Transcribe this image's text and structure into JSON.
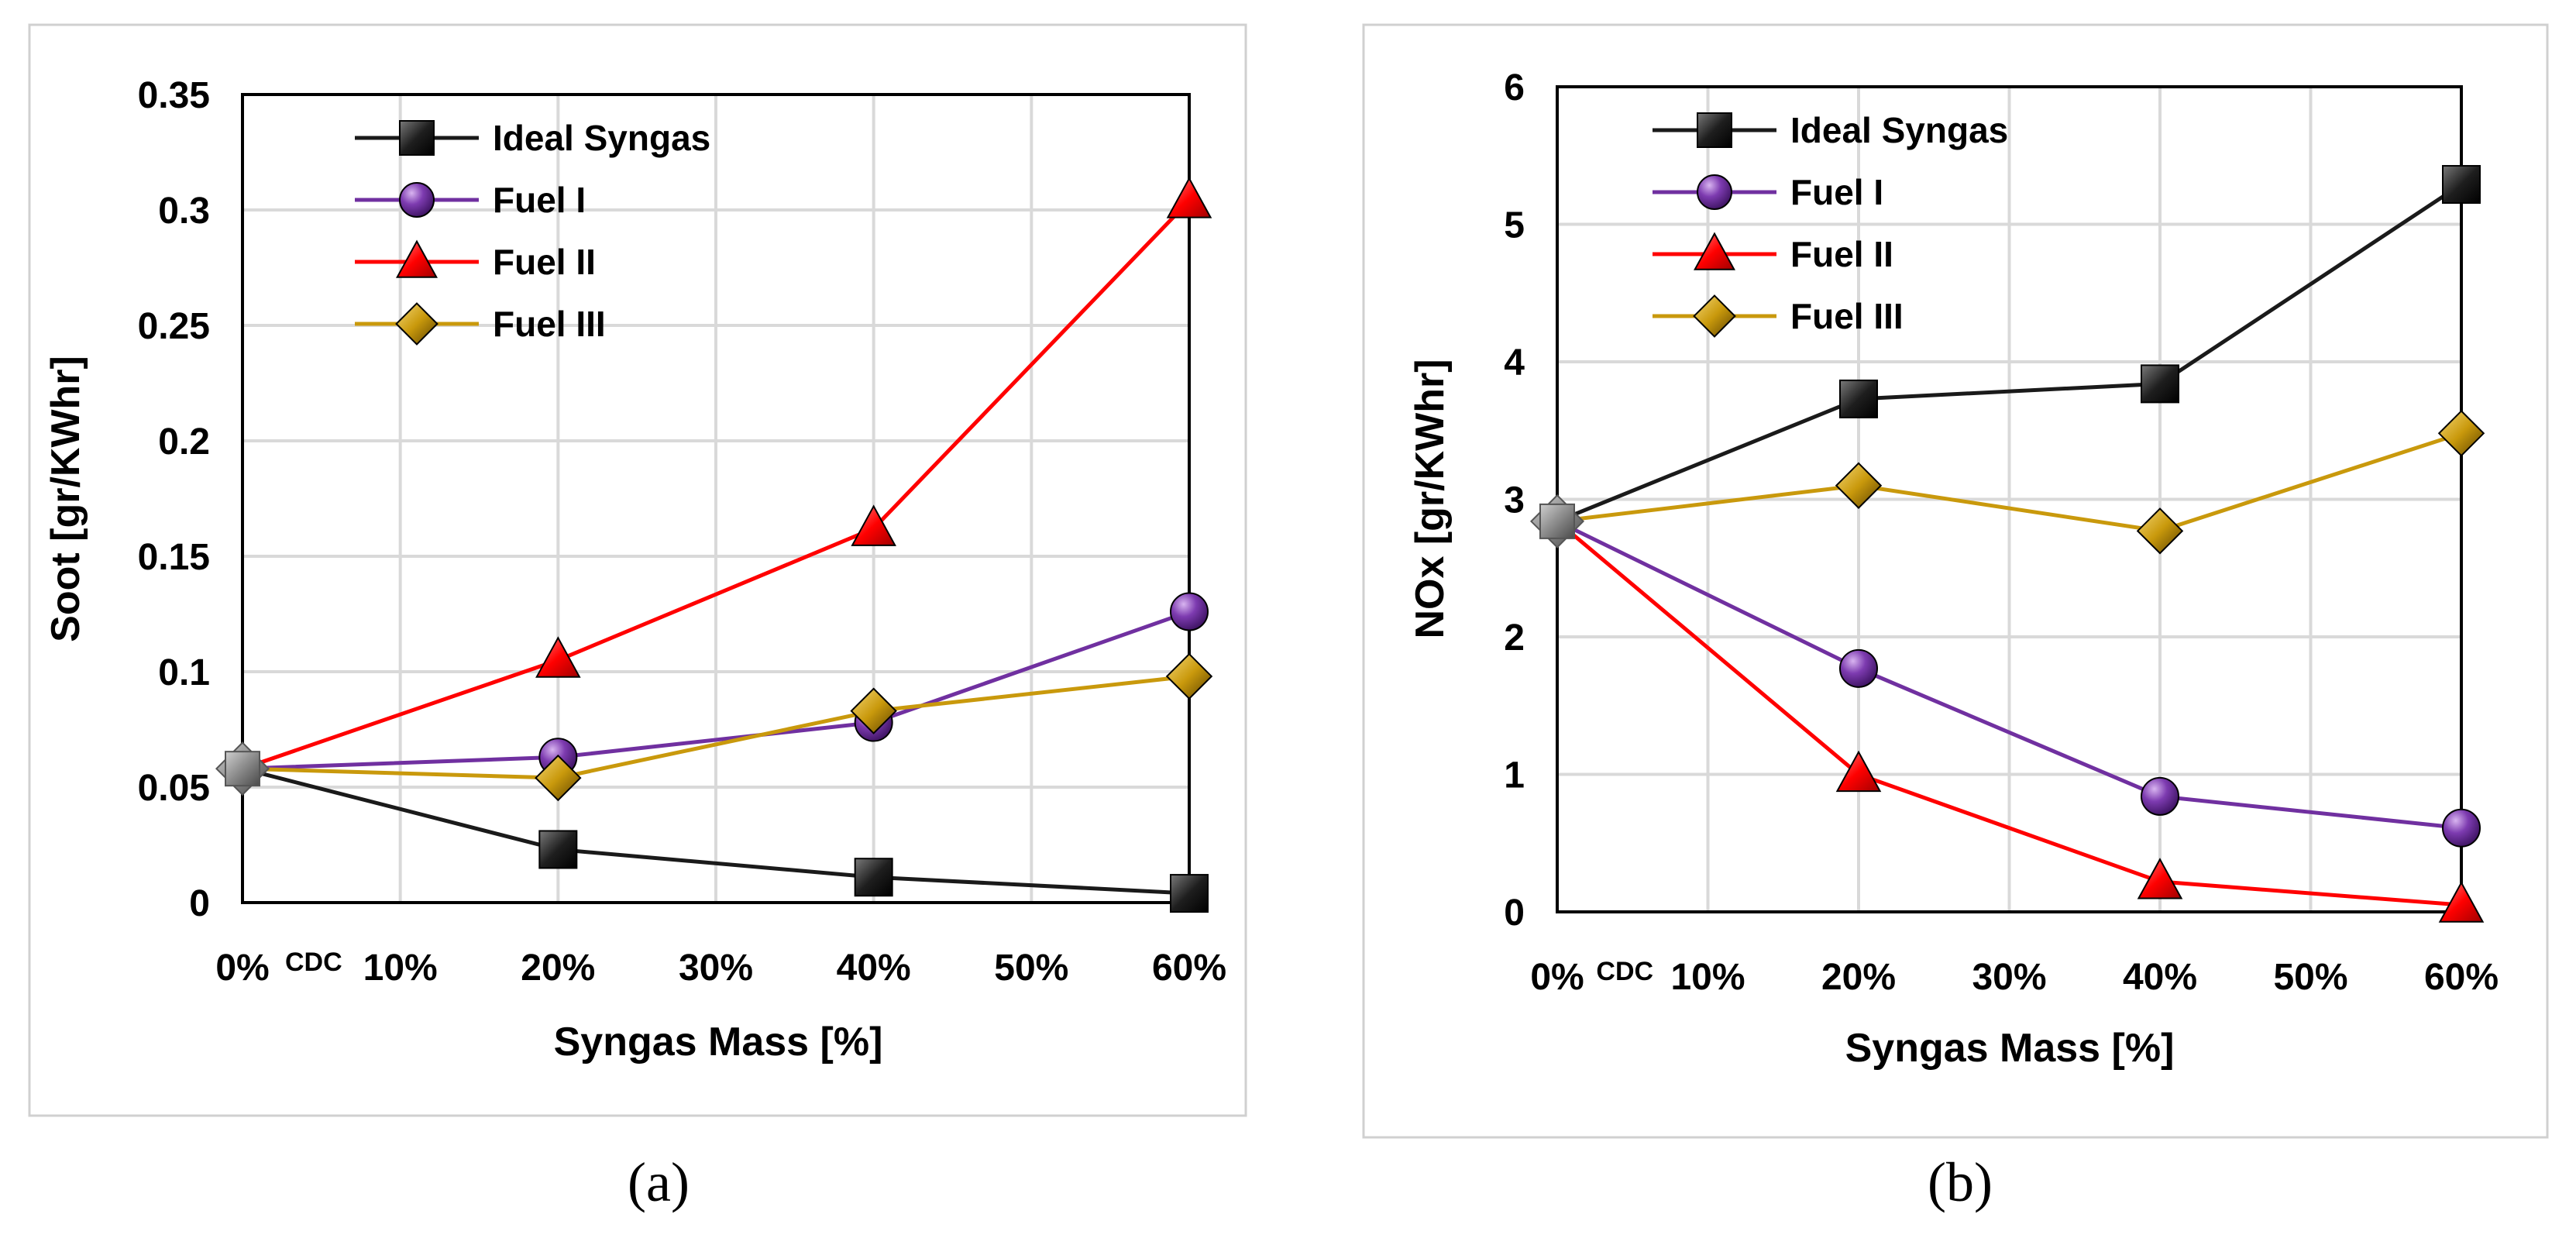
{
  "chart_data": [
    {
      "type": "line",
      "panel": "a",
      "caption": "(a)",
      "xlabel": "Syngas Mass [%]",
      "ylabel": "Soot [gr/KWhr]",
      "x_tick_labels": [
        "0%",
        "10%",
        "20%",
        "30%",
        "40%",
        "50%",
        "60%"
      ],
      "x_tick_values": [
        0,
        10,
        20,
        30,
        40,
        50,
        60
      ],
      "x_annotation": "CDC",
      "y_tick_labels": [
        "0",
        "0.05",
        "0.1",
        "0.15",
        "0.2",
        "0.25",
        "0.3",
        "0.35"
      ],
      "xlim": [
        0,
        60
      ],
      "ylim": [
        0,
        0.35
      ],
      "grid": true,
      "legend_position": "top-left",
      "x": [
        0,
        20,
        40,
        60
      ],
      "series": [
        {
          "name": "Ideal Syngas",
          "values": [
            0.058,
            0.023,
            0.011,
            0.004
          ],
          "color": "#1a1a1a",
          "marker": "square"
        },
        {
          "name": "Fuel I",
          "values": [
            0.058,
            0.063,
            0.078,
            0.126
          ],
          "color": "#7030a0",
          "marker": "circle"
        },
        {
          "name": "Fuel II",
          "values": [
            0.058,
            0.105,
            0.162,
            0.304
          ],
          "color": "#ff0000",
          "marker": "triangle"
        },
        {
          "name": "Fuel III",
          "values": [
            0.058,
            0.054,
            0.083,
            0.098
          ],
          "color": "#c9990c",
          "marker": "diamond"
        }
      ],
      "shared_start_color": "#808080"
    },
    {
      "type": "line",
      "panel": "b",
      "caption": "(b)",
      "xlabel": "Syngas Mass [%]",
      "ylabel": "NOx [gr/KWhr]",
      "x_tick_labels": [
        "0%",
        "10%",
        "20%",
        "30%",
        "40%",
        "50%",
        "60%"
      ],
      "x_tick_values": [
        0,
        10,
        20,
        30,
        40,
        50,
        60
      ],
      "x_annotation": "CDC",
      "y_tick_labels": [
        "0",
        "1",
        "2",
        "3",
        "4",
        "5",
        "6"
      ],
      "xlim": [
        0,
        60
      ],
      "ylim": [
        0,
        6
      ],
      "grid": true,
      "legend_position": "top-left",
      "x": [
        0,
        20,
        40,
        60
      ],
      "series": [
        {
          "name": "Ideal Syngas",
          "values": [
            2.84,
            3.73,
            3.84,
            5.29
          ],
          "color": "#1a1a1a",
          "marker": "square"
        },
        {
          "name": "Fuel I",
          "values": [
            2.84,
            1.77,
            0.84,
            0.61
          ],
          "color": "#7030a0",
          "marker": "circle"
        },
        {
          "name": "Fuel II",
          "values": [
            2.84,
            1.0,
            0.22,
            0.05
          ],
          "color": "#ff0000",
          "marker": "triangle"
        },
        {
          "name": "Fuel III",
          "values": [
            2.84,
            3.1,
            2.77,
            3.48
          ],
          "color": "#c9990c",
          "marker": "diamond"
        }
      ],
      "shared_start_color": "#808080"
    }
  ]
}
